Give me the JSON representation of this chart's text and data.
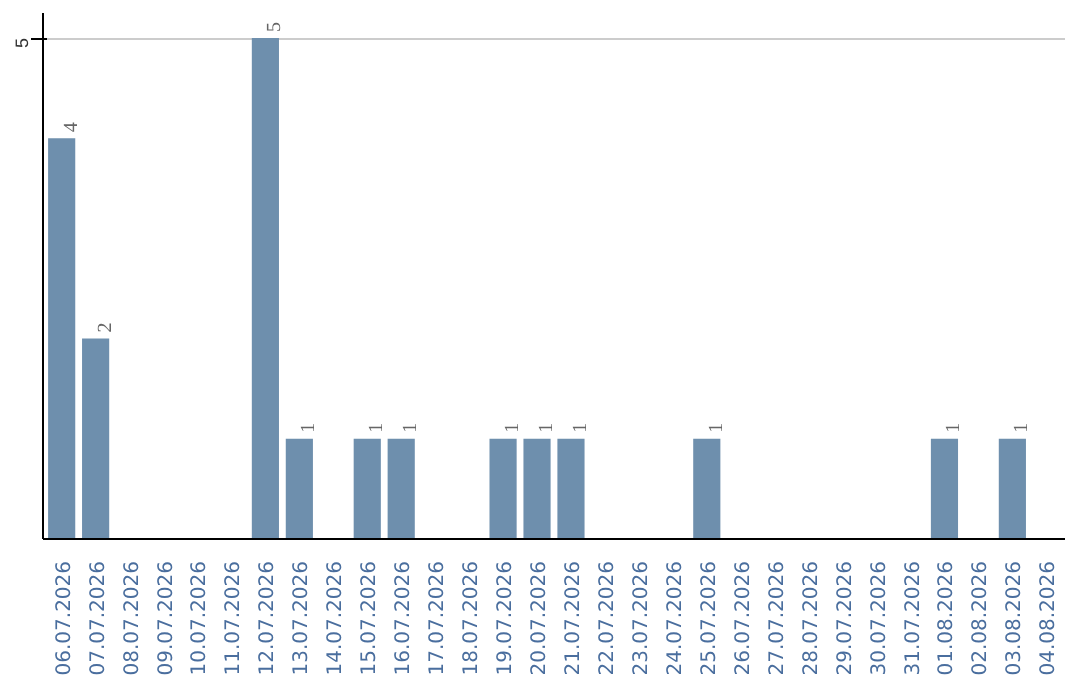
{
  "chart_data": {
    "type": "bar",
    "categories": [
      "06.07.2026",
      "07.07.2026",
      "08.07.2026",
      "09.07.2026",
      "10.07.2026",
      "11.07.2026",
      "12.07.2026",
      "13.07.2026",
      "14.07.2026",
      "15.07.2026",
      "16.07.2026",
      "17.07.2026",
      "18.07.2026",
      "19.07.2026",
      "20.07.2026",
      "21.07.2026",
      "22.07.2026",
      "23.07.2026",
      "24.07.2026",
      "25.07.2026",
      "26.07.2026",
      "27.07.2026",
      "28.07.2026",
      "29.07.2026",
      "30.07.2026",
      "31.07.2026",
      "01.08.2026",
      "02.08.2026",
      "03.08.2026",
      "04.08.2026"
    ],
    "values": [
      4,
      2,
      0,
      0,
      0,
      0,
      5,
      1,
      0,
      1,
      1,
      0,
      0,
      1,
      1,
      1,
      0,
      0,
      0,
      1,
      0,
      0,
      0,
      0,
      0,
      0,
      1,
      0,
      1,
      0
    ],
    "value_labels": [
      "4",
      "2",
      null,
      null,
      null,
      null,
      "5",
      "1",
      null,
      "1",
      "1",
      null,
      null,
      "1",
      "1",
      "1",
      null,
      null,
      null,
      "1",
      null,
      null,
      null,
      null,
      null,
      null,
      "1",
      null,
      "1",
      null
    ],
    "color": "#6e8fad",
    "ylim": [
      0,
      5.25
    ],
    "yticks": [
      5
    ],
    "grid": "y"
  }
}
